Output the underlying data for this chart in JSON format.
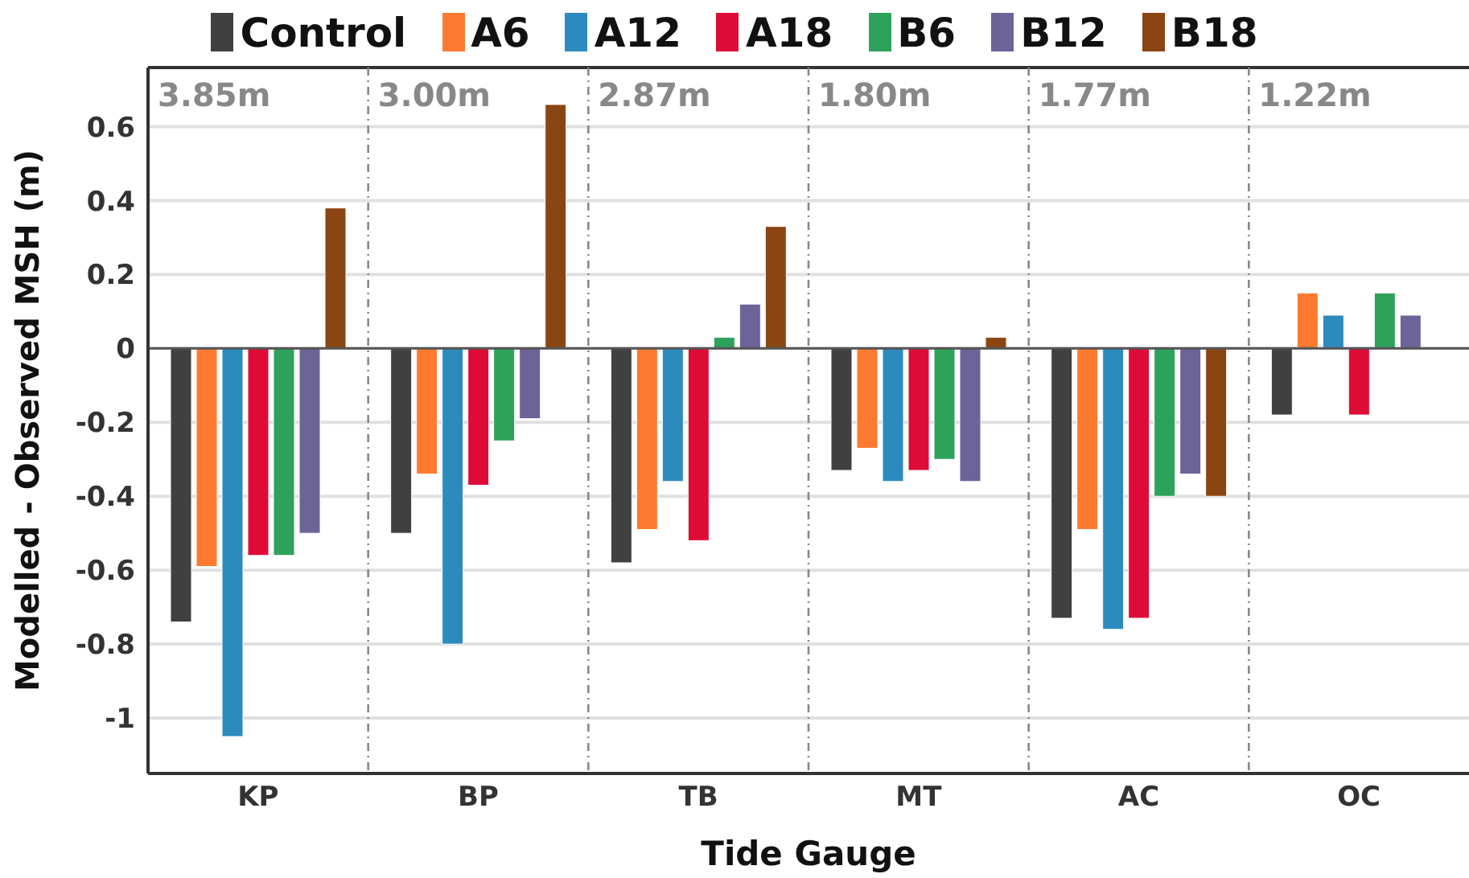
{
  "chart_data": {
    "type": "bar",
    "xlabel": "Tide Gauge",
    "ylabel": "Modelled - Observed MSH (m)",
    "categories": [
      "KP",
      "BP",
      "TB",
      "MT",
      "AC",
      "OC"
    ],
    "series": [
      {
        "name": "Control",
        "color": "#404040",
        "values": [
          -0.74,
          -0.5,
          -0.58,
          -0.33,
          -0.73,
          -0.18
        ]
      },
      {
        "name": "A6",
        "color": "#fd7a30",
        "values": [
          -0.59,
          -0.34,
          -0.49,
          -0.27,
          -0.49,
          0.15
        ]
      },
      {
        "name": "A12",
        "color": "#2b8bbe",
        "values": [
          -1.05,
          -0.8,
          -0.36,
          -0.36,
          -0.76,
          0.09
        ]
      },
      {
        "name": "A18",
        "color": "#de0b37",
        "values": [
          -0.56,
          -0.37,
          -0.52,
          -0.33,
          -0.73,
          -0.18
        ]
      },
      {
        "name": "B6",
        "color": "#2ca25a",
        "values": [
          -0.56,
          -0.25,
          0.03,
          -0.3,
          -0.4,
          0.15
        ]
      },
      {
        "name": "B12",
        "color": "#6c6399",
        "values": [
          -0.5,
          -0.19,
          0.12,
          -0.36,
          -0.34,
          0.09
        ]
      },
      {
        "name": "B18",
        "color": "#8b4513",
        "values": [
          0.38,
          0.66,
          0.33,
          0.03,
          -0.4,
          null
        ]
      }
    ],
    "ylim": [
      -1.15,
      0.76
    ],
    "yticks": [
      {
        "value": -1,
        "label": "-1"
      },
      -0.8,
      -0.6,
      -0.4,
      -0.2,
      0,
      0.2,
      0.4,
      0.6
    ],
    "grid": true,
    "legend": "top",
    "annotations": [
      "3.85m",
      "3.00m",
      "2.87m",
      "1.80m",
      "1.77m",
      "1.22m"
    ]
  }
}
